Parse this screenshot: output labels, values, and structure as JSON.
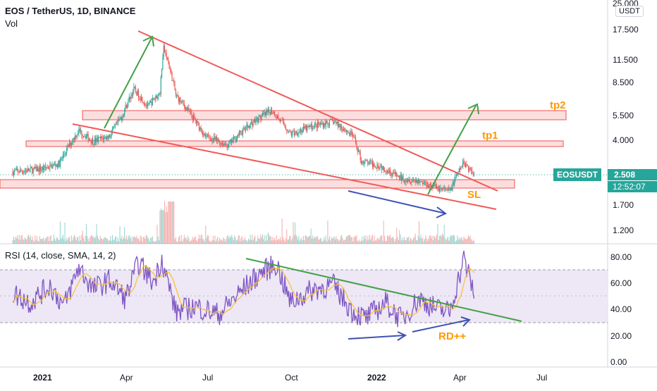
{
  "header": {
    "symbol_line": "EOS / TetherUS, 1D, BINANCE",
    "volume_label": "Vol",
    "currency_badge": "USDT"
  },
  "price_badge": {
    "ticker": "EOSUSDT",
    "price": "2.508",
    "countdown": "12:52:07"
  },
  "rsi_legend": "RSI (14, close, SMA, 14, 2)",
  "annotations": {
    "tp2": "tp2",
    "tp1": "tp1",
    "sl": "SL",
    "rd": "RD++"
  },
  "colors": {
    "up": "#26a69a",
    "down": "#ef5350",
    "trendline": "#f05a5a",
    "zone_fill": "#fbd8d8",
    "zone_stroke": "#ef5350",
    "target_arrow": "#43a047",
    "divergence_arrow": "#3f51b5",
    "annotation_orange": "#ff9800",
    "rsi_line": "#7e57c2",
    "rsi_ma": "#fbc02d",
    "rsi_band": "#ede7f6"
  },
  "chart_data": [
    {
      "type": "candlestick",
      "title": "EOS / TetherUS, 1D, BINANCE",
      "scale": "log",
      "y_ticks": [
        "25.000",
        "17.500",
        "11.500",
        "8.500",
        "5.500",
        "4.000",
        "2.500",
        "1.700",
        "1.200"
      ],
      "x_ticks": [
        "2021",
        "Apr",
        "Jul",
        "Oct",
        "2022",
        "Apr",
        "Jul"
      ],
      "last_price": 2.508,
      "price_path": [
        [
          "2020-12-01",
          2.6
        ],
        [
          "2021-01-01",
          2.7
        ],
        [
          "2021-01-20",
          2.9
        ],
        [
          "2021-02-10",
          4.5
        ],
        [
          "2021-02-25",
          3.9
        ],
        [
          "2021-03-15",
          4.2
        ],
        [
          "2021-03-28",
          5.4
        ],
        [
          "2021-04-10",
          7.8
        ],
        [
          "2021-04-25",
          6.2
        ],
        [
          "2021-05-08",
          7.5
        ],
        [
          "2021-05-12",
          13.5
        ],
        [
          "2021-05-25",
          7.2
        ],
        [
          "2021-06-10",
          5.6
        ],
        [
          "2021-06-25",
          4.2
        ],
        [
          "2021-07-20",
          3.7
        ],
        [
          "2021-08-15",
          5.0
        ],
        [
          "2021-09-05",
          5.9
        ],
        [
          "2021-09-25",
          4.3
        ],
        [
          "2021-10-20",
          4.8
        ],
        [
          "2021-11-10",
          5.1
        ],
        [
          "2021-12-01",
          4.2
        ],
        [
          "2021-12-10",
          3.0
        ],
        [
          "2021-12-31",
          2.8
        ],
        [
          "2022-01-20",
          2.4
        ],
        [
          "2022-02-10",
          2.3
        ],
        [
          "2022-03-01",
          2.1
        ],
        [
          "2022-03-15",
          2.0
        ],
        [
          "2022-03-30",
          2.95
        ],
        [
          "2022-04-10",
          2.5
        ]
      ],
      "volume_label": "Vol"
    },
    {
      "type": "line",
      "title": "RSI (14, close, SMA, 14, 2)",
      "y_ticks": [
        "80.00",
        "60.00",
        "40.00",
        "20.00",
        "0.00"
      ],
      "bands": [
        30,
        70
      ],
      "series": [
        {
          "values_path": [
            [
              "2020-12-01",
              52
            ],
            [
              "2020-12-20",
              45
            ],
            [
              "2021-01-10",
              58
            ],
            [
              "2021-01-25",
              42
            ],
            [
              "2021-02-10",
              72
            ],
            [
              "2021-02-25",
              55
            ],
            [
              "2021-03-15",
              62
            ],
            [
              "2021-04-01",
              48
            ],
            [
              "2021-04-15",
              75
            ],
            [
              "2021-05-01",
              60
            ],
            [
              "2021-05-10",
              78
            ],
            [
              "2021-05-25",
              38
            ],
            [
              "2021-06-15",
              42
            ],
            [
              "2021-07-10",
              36
            ],
            [
              "2021-08-05",
              55
            ],
            [
              "2021-08-25",
              68
            ],
            [
              "2021-09-10",
              74
            ],
            [
              "2021-09-25",
              45
            ],
            [
              "2021-10-20",
              55
            ],
            [
              "2021-11-10",
              58
            ],
            [
              "2021-12-01",
              38
            ],
            [
              "2021-12-15",
              33
            ],
            [
              "2022-01-05",
              45
            ],
            [
              "2022-01-22",
              32
            ],
            [
              "2022-02-10",
              48
            ],
            [
              "2022-03-01",
              40
            ],
            [
              "2022-03-15",
              38
            ],
            [
              "2022-03-30",
              78
            ],
            [
              "2022-04-10",
              52
            ]
          ]
        }
      ]
    }
  ]
}
